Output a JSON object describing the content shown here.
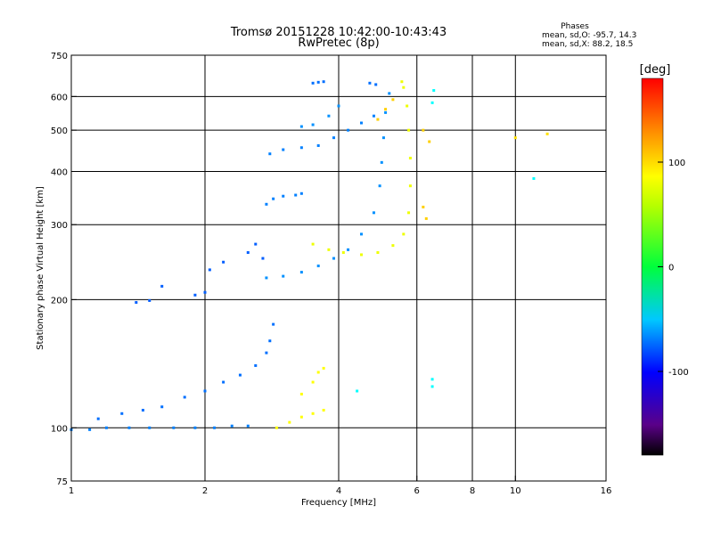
{
  "chart_data": {
    "type": "scatter",
    "title_line1": "Tromsø 20151228 10:42:00-10:43:43",
    "title_line2": "RwPretec (8p)",
    "stats": {
      "heading": "Phases",
      "line_o": "mean, sd,O: -95.7, 14.3",
      "line_x": "mean, sd,X:  88.2, 18.5"
    },
    "xlabel": "Frequency [MHz]",
    "ylabel": "Stationary phase Virtual Height [km]",
    "x_scale": "log",
    "y_scale": "log",
    "xlim": [
      1,
      16
    ],
    "ylim": [
      75,
      750
    ],
    "x_ticks": [
      1,
      2,
      4,
      6,
      8,
      10,
      16
    ],
    "x_gridlines": [
      2,
      4,
      6,
      8,
      10
    ],
    "y_ticks": [
      75,
      100,
      200,
      300,
      400,
      500,
      600,
      750
    ],
    "y_gridlines": [
      100,
      200,
      300,
      400,
      500,
      600
    ],
    "grid": true,
    "colorbar": {
      "label": "[deg]",
      "range": [
        -180,
        180
      ],
      "ticks": [
        -100,
        0,
        100
      ]
    },
    "series": [
      {
        "phase": -100,
        "points": [
          [
            1.0,
            99
          ],
          [
            1.1,
            99
          ],
          [
            1.2,
            100
          ],
          [
            1.35,
            100
          ],
          [
            1.5,
            100
          ],
          [
            1.7,
            100
          ],
          [
            1.9,
            100
          ],
          [
            2.1,
            100
          ],
          [
            2.3,
            101
          ],
          [
            2.5,
            101
          ]
        ]
      },
      {
        "phase": -105,
        "points": [
          [
            1.15,
            105
          ],
          [
            1.3,
            108
          ],
          [
            1.45,
            110
          ],
          [
            1.6,
            112
          ],
          [
            1.8,
            118
          ],
          [
            2.0,
            122
          ],
          [
            2.2,
            128
          ],
          [
            2.4,
            133
          ],
          [
            2.6,
            140
          ],
          [
            2.75,
            150
          ],
          [
            2.8,
            160
          ],
          [
            2.85,
            175
          ]
        ]
      },
      {
        "phase": -110,
        "points": [
          [
            1.4,
            197
          ],
          [
            1.5,
            199
          ],
          [
            1.6,
            215
          ],
          [
            1.9,
            205
          ],
          [
            2.0,
            208
          ],
          [
            2.05,
            235
          ],
          [
            2.2,
            245
          ],
          [
            2.5,
            258
          ],
          [
            2.6,
            270
          ],
          [
            2.7,
            250
          ]
        ]
      },
      {
        "phase": -95,
        "points": [
          [
            2.75,
            225
          ],
          [
            3.0,
            227
          ],
          [
            3.3,
            232
          ],
          [
            3.6,
            240
          ],
          [
            3.9,
            250
          ],
          [
            4.2,
            262
          ],
          [
            4.5,
            285
          ],
          [
            4.8,
            320
          ],
          [
            4.95,
            370
          ],
          [
            5.0,
            420
          ],
          [
            5.05,
            480
          ],
          [
            5.1,
            550
          ],
          [
            5.2,
            610
          ]
        ]
      },
      {
        "phase": -100,
        "points": [
          [
            2.75,
            335
          ],
          [
            2.85,
            345
          ],
          [
            3.0,
            350
          ],
          [
            3.2,
            352
          ],
          [
            3.3,
            355
          ]
        ]
      },
      {
        "phase": -100,
        "points": [
          [
            2.8,
            440
          ],
          [
            3.0,
            450
          ],
          [
            3.3,
            455
          ],
          [
            3.6,
            460
          ],
          [
            3.9,
            480
          ],
          [
            4.2,
            500
          ],
          [
            4.5,
            520
          ],
          [
            4.8,
            540
          ]
        ]
      },
      {
        "phase": -95,
        "points": [
          [
            3.3,
            510
          ],
          [
            3.5,
            515
          ],
          [
            3.8,
            540
          ],
          [
            4.0,
            570
          ]
        ]
      },
      {
        "phase": -105,
        "points": [
          [
            3.5,
            645
          ],
          [
            3.6,
            648
          ],
          [
            3.7,
            650
          ],
          [
            4.7,
            645
          ],
          [
            4.85,
            640
          ]
        ]
      },
      {
        "phase": 95,
        "points": [
          [
            3.5,
            270
          ],
          [
            3.8,
            262
          ],
          [
            4.1,
            258
          ],
          [
            4.5,
            255
          ],
          [
            4.9,
            258
          ],
          [
            5.3,
            268
          ],
          [
            5.6,
            285
          ],
          [
            5.75,
            320
          ],
          [
            5.8,
            370
          ],
          [
            5.8,
            430
          ],
          [
            5.75,
            500
          ],
          [
            5.7,
            570
          ],
          [
            5.6,
            630
          ],
          [
            5.55,
            650
          ]
        ]
      },
      {
        "phase": 100,
        "points": [
          [
            2.9,
            100
          ],
          [
            3.1,
            103
          ],
          [
            3.3,
            106
          ],
          [
            3.5,
            108
          ],
          [
            3.7,
            110
          ],
          [
            3.3,
            120
          ],
          [
            3.5,
            128
          ],
          [
            3.6,
            135
          ],
          [
            3.7,
            138
          ]
        ]
      },
      {
        "phase": 115,
        "points": [
          [
            4.9,
            530
          ],
          [
            5.1,
            560
          ],
          [
            5.3,
            590
          ],
          [
            6.2,
            500
          ],
          [
            6.4,
            470
          ],
          [
            6.2,
            330
          ],
          [
            6.3,
            310
          ]
        ]
      },
      {
        "phase": 110,
        "points": [
          [
            10.0,
            480
          ],
          [
            11.8,
            490
          ]
        ]
      },
      {
        "phase": -60,
        "points": [
          [
            6.55,
            620
          ],
          [
            6.5,
            130
          ],
          [
            6.5,
            125
          ],
          [
            4.4,
            122
          ],
          [
            11.0,
            385
          ],
          [
            6.5,
            580
          ]
        ]
      }
    ]
  }
}
